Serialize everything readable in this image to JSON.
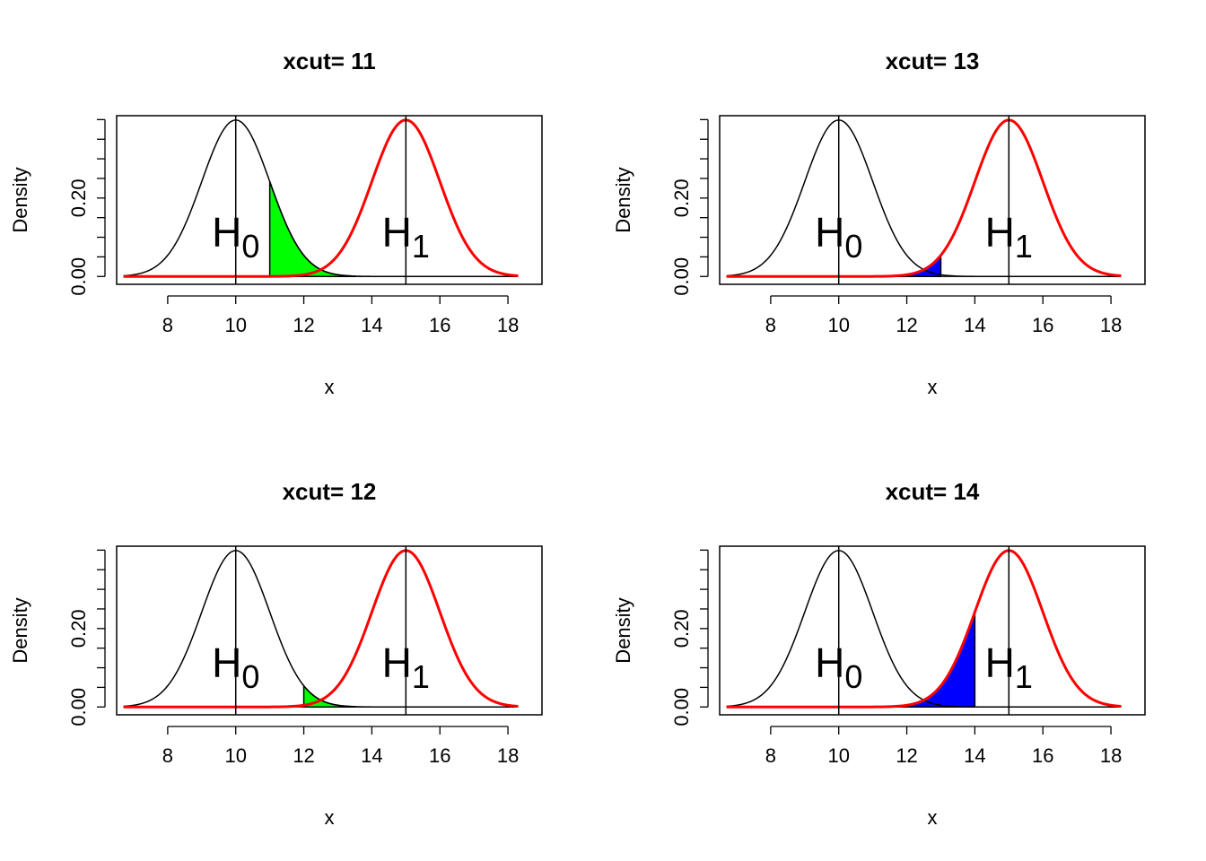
{
  "colors": {
    "h0_curve": "#000000",
    "h1_curve": "#ff0000",
    "alpha_fill": "#00ff00",
    "beta_fill": "#0000ff"
  },
  "chart_data": [
    {
      "type": "line",
      "title": "xcut= 11",
      "xlabel": "x",
      "ylabel": "Density",
      "xlim": [
        6.5,
        19.0
      ],
      "ylim": [
        -0.02,
        0.41
      ],
      "x_ticks": [
        8,
        10,
        12,
        14,
        16,
        18
      ],
      "y_ticks_labeled": [
        0.0,
        0.2
      ],
      "y_ticks_labels": [
        "0.00",
        "0.20"
      ],
      "y_ticks_all": [
        0.0,
        0.05,
        0.1,
        0.15,
        0.2,
        0.25,
        0.3,
        0.35,
        0.4
      ],
      "grid": false,
      "series": [
        {
          "distribution": "normal",
          "mean": 10,
          "sd": 1,
          "color": "#000000"
        },
        {
          "distribution": "normal",
          "mean": 15,
          "sd": 1,
          "color": "#ff0000"
        }
      ],
      "xcut": 11,
      "shaded": "alpha",
      "vlines": [
        10,
        15
      ],
      "labels": [
        {
          "text": "H",
          "sub": "0",
          "x": 10
        },
        {
          "text": "H",
          "sub": "1",
          "x": 15
        }
      ]
    },
    {
      "type": "line",
      "title": "xcut= 13",
      "xlabel": "x",
      "ylabel": "Density",
      "xlim": [
        6.5,
        19.0
      ],
      "ylim": [
        -0.02,
        0.41
      ],
      "x_ticks": [
        8,
        10,
        12,
        14,
        16,
        18
      ],
      "y_ticks_labeled": [
        0.0,
        0.2
      ],
      "y_ticks_labels": [
        "0.00",
        "0.20"
      ],
      "y_ticks_all": [
        0.0,
        0.05,
        0.1,
        0.15,
        0.2,
        0.25,
        0.3,
        0.35,
        0.4
      ],
      "grid": false,
      "series": [
        {
          "distribution": "normal",
          "mean": 10,
          "sd": 1,
          "color": "#000000"
        },
        {
          "distribution": "normal",
          "mean": 15,
          "sd": 1,
          "color": "#ff0000"
        }
      ],
      "xcut": 13,
      "shaded": "beta",
      "vlines": [
        10,
        15
      ],
      "labels": [
        {
          "text": "H",
          "sub": "0",
          "x": 10
        },
        {
          "text": "H",
          "sub": "1",
          "x": 15
        }
      ]
    },
    {
      "type": "line",
      "title": "xcut= 12",
      "xlabel": "x",
      "ylabel": "Density",
      "xlim": [
        6.5,
        19.0
      ],
      "ylim": [
        -0.02,
        0.41
      ],
      "x_ticks": [
        8,
        10,
        12,
        14,
        16,
        18
      ],
      "y_ticks_labeled": [
        0.0,
        0.2
      ],
      "y_ticks_labels": [
        "0.00",
        "0.20"
      ],
      "y_ticks_all": [
        0.0,
        0.05,
        0.1,
        0.15,
        0.2,
        0.25,
        0.3,
        0.35,
        0.4
      ],
      "grid": false,
      "series": [
        {
          "distribution": "normal",
          "mean": 10,
          "sd": 1,
          "color": "#000000"
        },
        {
          "distribution": "normal",
          "mean": 15,
          "sd": 1,
          "color": "#ff0000"
        }
      ],
      "xcut": 12,
      "shaded": "alpha",
      "vlines": [
        10,
        15
      ],
      "labels": [
        {
          "text": "H",
          "sub": "0",
          "x": 10
        },
        {
          "text": "H",
          "sub": "1",
          "x": 15
        }
      ]
    },
    {
      "type": "line",
      "title": "xcut= 14",
      "xlabel": "x",
      "ylabel": "Density",
      "xlim": [
        6.5,
        19.0
      ],
      "ylim": [
        -0.02,
        0.41
      ],
      "x_ticks": [
        8,
        10,
        12,
        14,
        16,
        18
      ],
      "y_ticks_labeled": [
        0.0,
        0.2
      ],
      "y_ticks_labels": [
        "0.00",
        "0.20"
      ],
      "y_ticks_all": [
        0.0,
        0.05,
        0.1,
        0.15,
        0.2,
        0.25,
        0.3,
        0.35,
        0.4
      ],
      "grid": false,
      "series": [
        {
          "distribution": "normal",
          "mean": 10,
          "sd": 1,
          "color": "#000000"
        },
        {
          "distribution": "normal",
          "mean": 15,
          "sd": 1,
          "color": "#ff0000"
        }
      ],
      "xcut": 14,
      "shaded": "beta",
      "vlines": [
        10,
        15
      ],
      "labels": [
        {
          "text": "H",
          "sub": "0",
          "x": 10
        },
        {
          "text": "H",
          "sub": "1",
          "x": 15
        }
      ]
    }
  ]
}
